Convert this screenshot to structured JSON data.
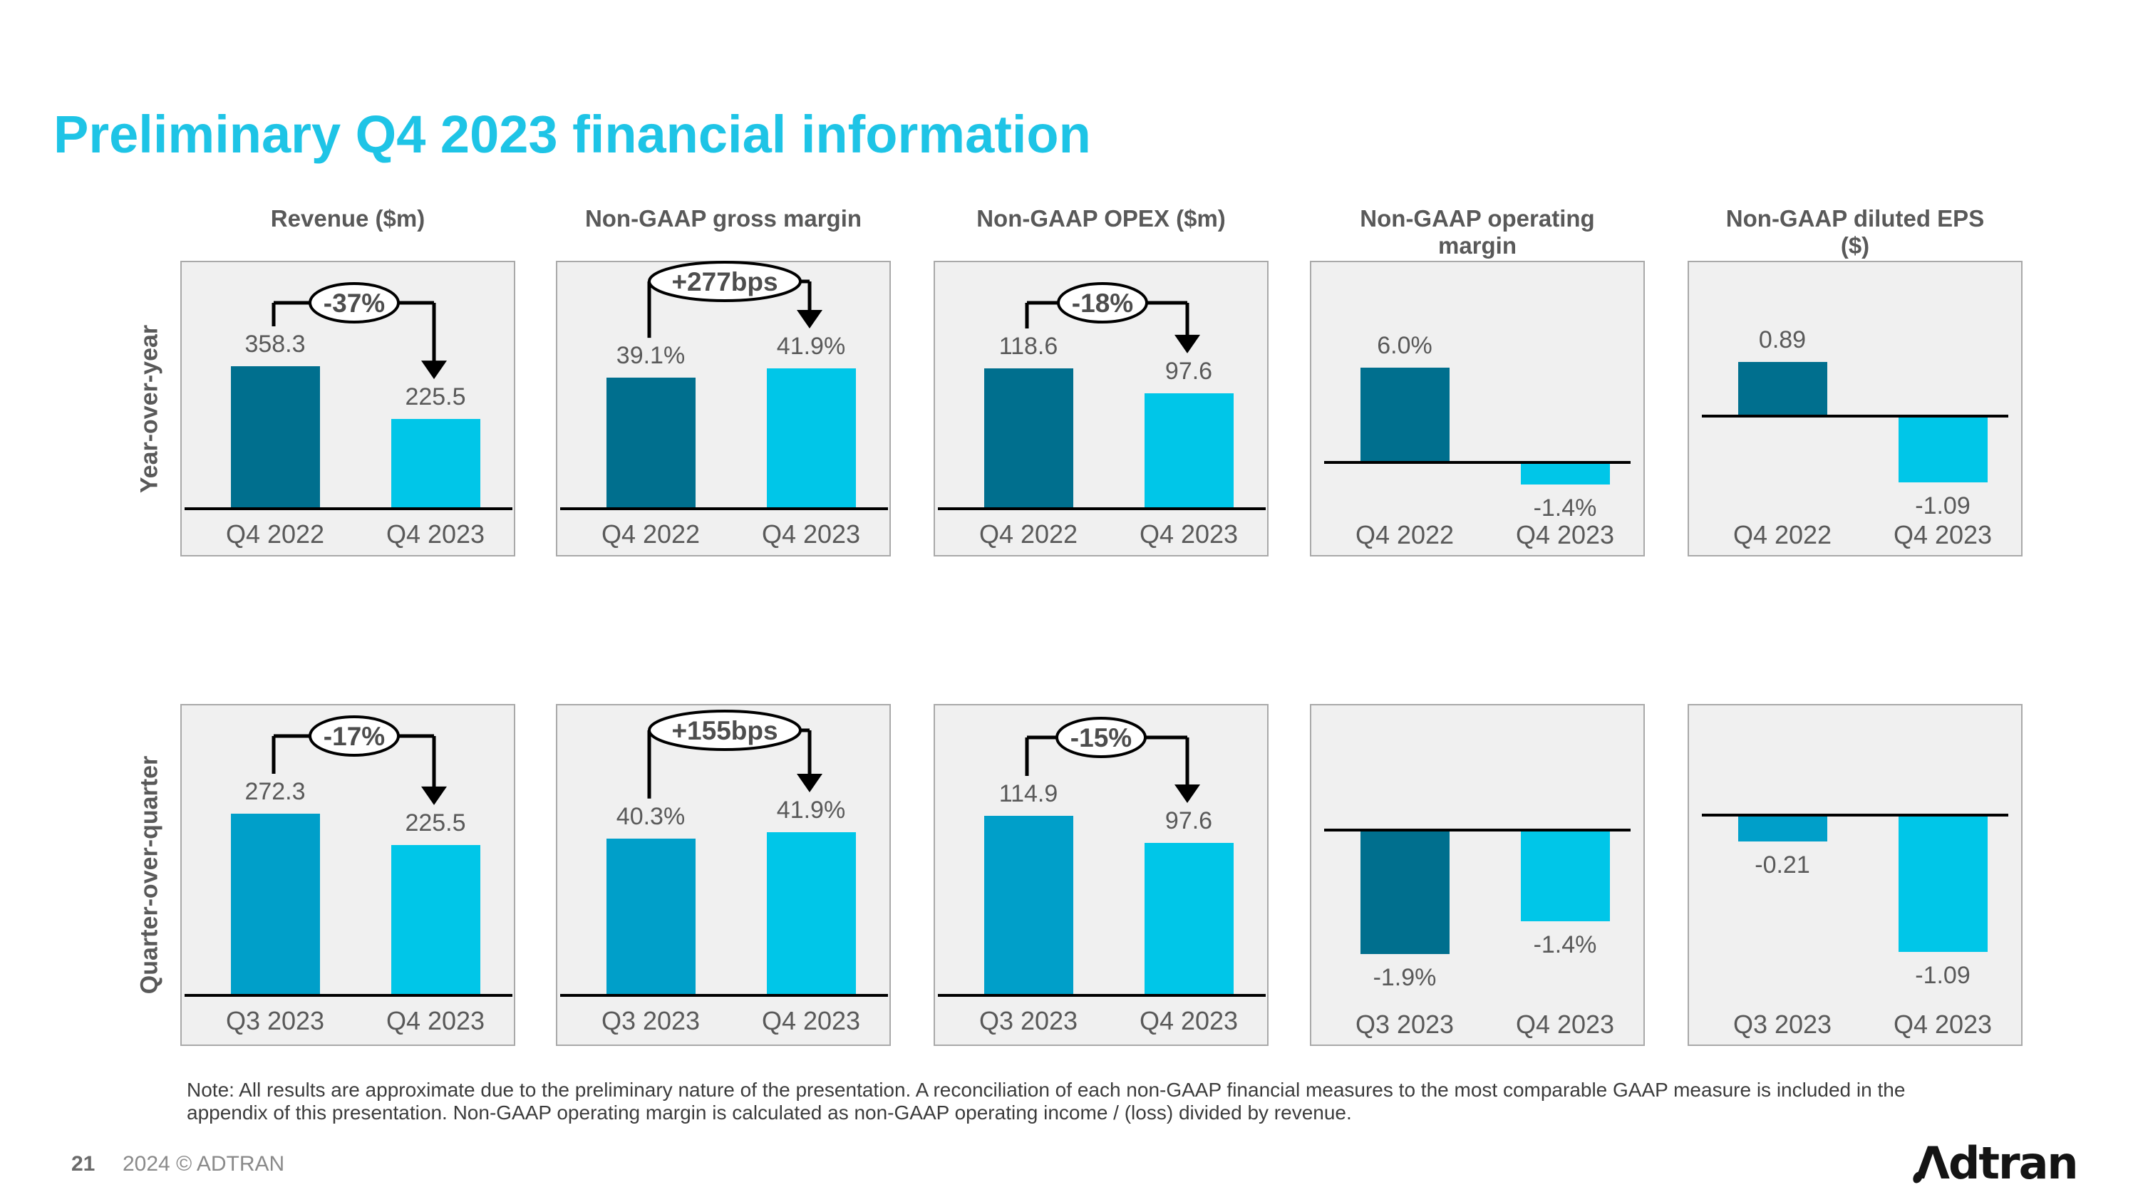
{
  "slide": {
    "title": "Preliminary Q4 2023 financial information",
    "note": "Note: All results are approximate due to the preliminary nature of the presentation.  A reconciliation of each non-GAAP financial measures to the most comparable GAAP measure is included in the appendix of this presentation. Non-GAAP operating margin is calculated as non-GAAP operating income / (loss) divided by revenue.",
    "page_number": "21",
    "copyright": "2024 © ADTRAN",
    "logo_text": "Adtran"
  },
  "palette": {
    "title_cyan": "#1ec4e6",
    "dark_teal": "#006f8e",
    "medium_blue": "#009fc9",
    "bright_cyan": "#00c6e8",
    "label_gray": "#595959",
    "panel_bg": "#f0f0f0",
    "panel_border": "#a9a9a9",
    "annotation_black": "#000000"
  },
  "columns": [
    "Revenue ($m)",
    "Non-GAAP gross margin",
    "Non-GAAP OPEX ($m)",
    "Non-GAAP operating\nmargin",
    "Non-GAAP diluted EPS\n($)"
  ],
  "rows": [
    "Year-over-year",
    "Quarter-over-quarter"
  ],
  "chart_data": [
    {
      "id": "revenue-yoy",
      "type": "bar",
      "row": 0,
      "col": 0,
      "title": "Revenue ($m)",
      "group": "Year-over-year",
      "categories": [
        "Q4 2022",
        "Q4 2023"
      ],
      "values": [
        358.3,
        225.5
      ],
      "value_labels": [
        "358.3",
        "225.5"
      ],
      "change_label": "-37%",
      "bar_colors": [
        "#006f8e",
        "#00c6e8"
      ]
    },
    {
      "id": "gross-margin-yoy",
      "type": "bar",
      "row": 0,
      "col": 1,
      "title": "Non-GAAP gross margin",
      "group": "Year-over-year",
      "categories": [
        "Q4 2022",
        "Q4 2023"
      ],
      "values": [
        39.1,
        41.9
      ],
      "value_labels": [
        "39.1%",
        "41.9%"
      ],
      "change_label": "+277bps",
      "bar_colors": [
        "#006f8e",
        "#00c6e8"
      ]
    },
    {
      "id": "opex-yoy",
      "type": "bar",
      "row": 0,
      "col": 2,
      "title": "Non-GAAP OPEX ($m)",
      "group": "Year-over-year",
      "categories": [
        "Q4 2022",
        "Q4 2023"
      ],
      "values": [
        118.6,
        97.6
      ],
      "value_labels": [
        "118.6",
        "97.6"
      ],
      "change_label": "-18%",
      "bar_colors": [
        "#006f8e",
        "#00c6e8"
      ]
    },
    {
      "id": "operating-margin-yoy",
      "type": "bar",
      "row": 0,
      "col": 3,
      "title": "Non-GAAP operating margin",
      "group": "Year-over-year",
      "categories": [
        "Q4 2022",
        "Q4 2023"
      ],
      "values": [
        6.0,
        -1.4
      ],
      "value_labels": [
        "6.0%",
        "-1.4%"
      ],
      "change_label": null,
      "bar_colors": [
        "#006f8e",
        "#00c6e8"
      ]
    },
    {
      "id": "eps-yoy",
      "type": "bar",
      "row": 0,
      "col": 4,
      "title": "Non-GAAP diluted EPS ($)",
      "group": "Year-over-year",
      "categories": [
        "Q4 2022",
        "Q4 2023"
      ],
      "values": [
        0.89,
        -1.09
      ],
      "value_labels": [
        "0.89",
        "-1.09"
      ],
      "change_label": null,
      "bar_colors": [
        "#006f8e",
        "#00c6e8"
      ]
    },
    {
      "id": "revenue-qoq",
      "type": "bar",
      "row": 1,
      "col": 0,
      "title": "Revenue ($m)",
      "group": "Quarter-over-quarter",
      "categories": [
        "Q3 2023",
        "Q4 2023"
      ],
      "values": [
        272.3,
        225.5
      ],
      "value_labels": [
        "272.3",
        "225.5"
      ],
      "change_label": "-17%",
      "bar_colors": [
        "#009fc9",
        "#00c6e8"
      ]
    },
    {
      "id": "gross-margin-qoq",
      "type": "bar",
      "row": 1,
      "col": 1,
      "title": "Non-GAAP gross margin",
      "group": "Quarter-over-quarter",
      "categories": [
        "Q3 2023",
        "Q4 2023"
      ],
      "values": [
        40.3,
        41.9
      ],
      "value_labels": [
        "40.3%",
        "41.9%"
      ],
      "change_label": "+155bps",
      "bar_colors": [
        "#009fc9",
        "#00c6e8"
      ]
    },
    {
      "id": "opex-qoq",
      "type": "bar",
      "row": 1,
      "col": 2,
      "title": "Non-GAAP OPEX ($m)",
      "group": "Quarter-over-quarter",
      "categories": [
        "Q3 2023",
        "Q4 2023"
      ],
      "values": [
        114.9,
        97.6
      ],
      "value_labels": [
        "114.9",
        "97.6"
      ],
      "change_label": "-15%",
      "bar_colors": [
        "#009fc9",
        "#00c6e8"
      ]
    },
    {
      "id": "operating-margin-qoq",
      "type": "bar",
      "row": 1,
      "col": 3,
      "title": "Non-GAAP operating margin",
      "group": "Quarter-over-quarter",
      "categories": [
        "Q3 2023",
        "Q4 2023"
      ],
      "values": [
        -1.9,
        -1.4
      ],
      "value_labels": [
        "-1.9%",
        "-1.4%"
      ],
      "change_label": null,
      "bar_colors": [
        "#006f8e",
        "#00c6e8"
      ]
    },
    {
      "id": "eps-qoq",
      "type": "bar",
      "row": 1,
      "col": 4,
      "title": "Non-GAAP diluted EPS ($)",
      "group": "Quarter-over-quarter",
      "categories": [
        "Q3 2023",
        "Q4 2023"
      ],
      "values": [
        -0.21,
        -1.09
      ],
      "value_labels": [
        "-0.21",
        "-1.09"
      ],
      "change_label": null,
      "bar_colors": [
        "#009fc9",
        "#00c6e8"
      ]
    }
  ]
}
